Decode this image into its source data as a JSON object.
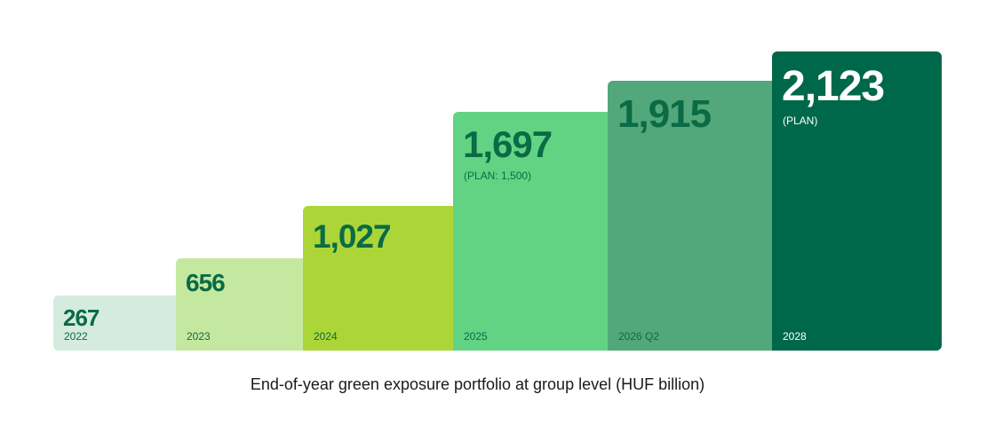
{
  "chart_data": {
    "type": "bar",
    "categories": [
      "2022",
      "2023",
      "2024",
      "2025",
      "2026 Q2",
      "2028"
    ],
    "values": [
      267,
      656,
      1027,
      1697,
      1915,
      2123
    ],
    "value_labels": [
      "267",
      "656",
      "1,027",
      "1,697",
      "1,915",
      "2,123"
    ],
    "notes": [
      "",
      "",
      "",
      "(PLAN: 1,500)",
      "",
      "(PLAN)"
    ],
    "colors": [
      "#d6ebdf",
      "#c5e8a1",
      "#acd637",
      "#62d383",
      "#52a87a",
      "#00684a"
    ],
    "text_colors": [
      "#0a6b45",
      "#0a6b45",
      "#0a6b45",
      "#0a6b45",
      "#0a6b45",
      "#ffffff"
    ],
    "caption": "End-of-year green exposure portfolio at group level (HUF billion)",
    "grid": false,
    "legend": "none"
  }
}
